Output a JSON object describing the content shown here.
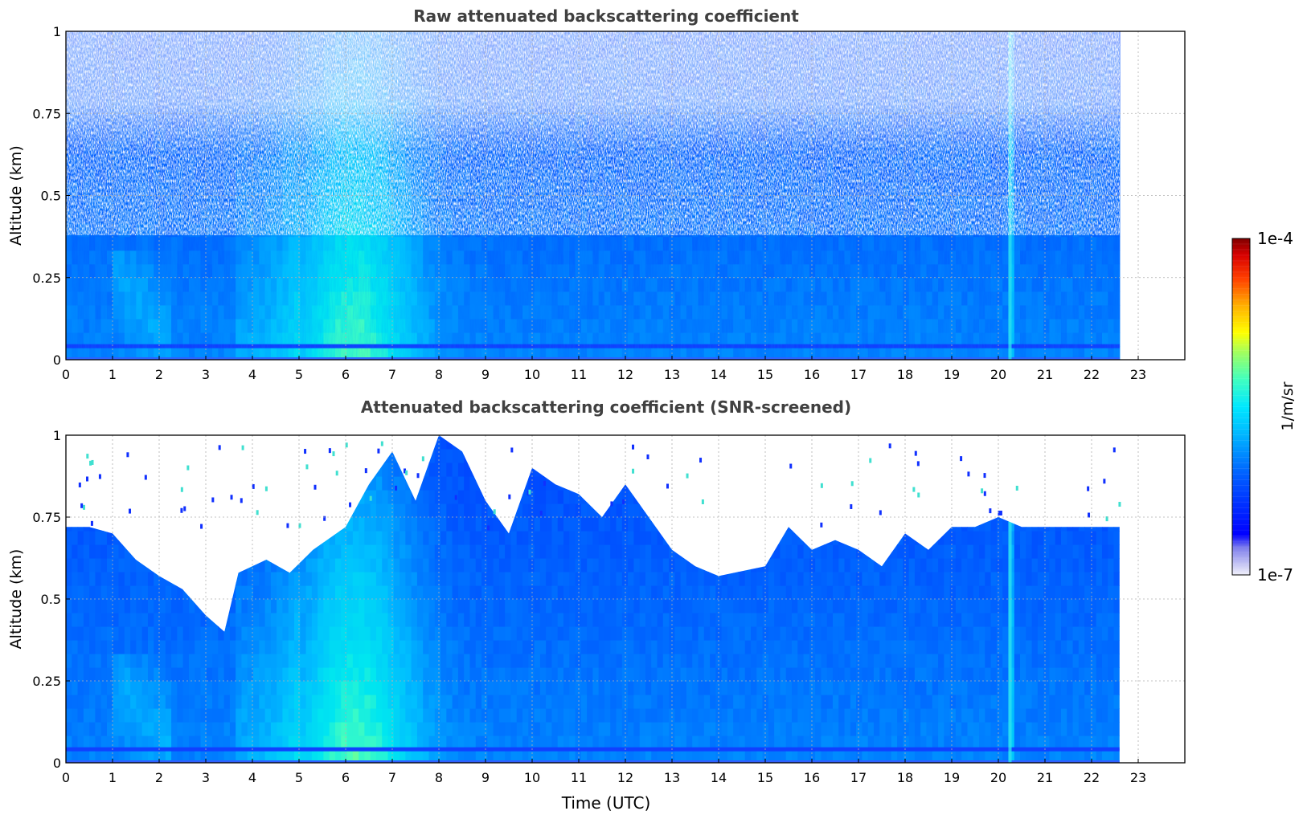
{
  "figure": {
    "xlabel": "Time (UTC)",
    "colorbar": {
      "label": "1/m/sr",
      "max_label": "1e-4",
      "min_label": "1e-7",
      "scale": "log",
      "range": [
        1e-07,
        0.0001
      ],
      "colors": [
        "#e8e8f8",
        "#c0c0f0",
        "#9090e8",
        "#0000ff",
        "#0050ff",
        "#00a0ff",
        "#00e0ff",
        "#40ffc0",
        "#a0ff60",
        "#ffff00",
        "#ffb000",
        "#ff5000",
        "#e00000",
        "#800000"
      ]
    }
  },
  "chart_data": [
    {
      "type": "heatmap",
      "title": "Raw attenuated backscattering coefficient",
      "xlabel": "",
      "ylabel": "Altitude (km)",
      "xlim": [
        0,
        24
      ],
      "ylim": [
        0,
        1
      ],
      "x_ticks": [
        "0",
        "1",
        "2",
        "3",
        "4",
        "5",
        "6",
        "7",
        "8",
        "9",
        "10",
        "11",
        "12",
        "13",
        "14",
        "15",
        "16",
        "17",
        "18",
        "19",
        "20",
        "21",
        "22",
        "23"
      ],
      "y_ticks": [
        "0",
        "0.25",
        "0.5",
        "0.75",
        "1"
      ],
      "grid": true,
      "data_end_time": 22.6,
      "vertical_spike_time": 20.25,
      "horizontal_band_altitude": 0.04,
      "notes_regions": [
        {
          "time": [
            5.0,
            8.0
          ],
          "altitude": [
            0,
            1
          ],
          "level": "high (cyan-green)"
        },
        {
          "time": [
            0,
            22.6
          ],
          "altitude": [
            0.4,
            1
          ],
          "level": "noisy (blue/white)"
        }
      ]
    },
    {
      "type": "heatmap",
      "title": "Attenuated backscattering coefficient (SNR-screened)",
      "xlabel": "Time (UTC)",
      "ylabel": "Altitude (km)",
      "xlim": [
        0,
        24
      ],
      "ylim": [
        0,
        1
      ],
      "x_ticks": [
        "0",
        "1",
        "2",
        "3",
        "4",
        "5",
        "6",
        "7",
        "8",
        "9",
        "10",
        "11",
        "12",
        "13",
        "14",
        "15",
        "16",
        "17",
        "18",
        "19",
        "20",
        "21",
        "22",
        "23"
      ],
      "y_ticks": [
        "0",
        "0.25",
        "0.5",
        "0.75",
        "1"
      ],
      "grid": true,
      "data_end_time": 22.6,
      "vertical_spike_time": 20.25,
      "horizontal_band_altitude": 0.04,
      "screened_top_altitude": [
        [
          0,
          0.72
        ],
        [
          0.5,
          0.72
        ],
        [
          1,
          0.7
        ],
        [
          1.5,
          0.62
        ],
        [
          2,
          0.57
        ],
        [
          2.5,
          0.53
        ],
        [
          3,
          0.45
        ],
        [
          3.4,
          0.4
        ],
        [
          3.7,
          0.58
        ],
        [
          4.3,
          0.62
        ],
        [
          4.8,
          0.58
        ],
        [
          5.3,
          0.65
        ],
        [
          6,
          0.72
        ],
        [
          6.5,
          0.85
        ],
        [
          7,
          0.95
        ],
        [
          7.5,
          0.8
        ],
        [
          8,
          1.0
        ],
        [
          8.5,
          0.95
        ],
        [
          9,
          0.8
        ],
        [
          9.5,
          0.7
        ],
        [
          10,
          0.9
        ],
        [
          10.5,
          0.85
        ],
        [
          11,
          0.82
        ],
        [
          11.5,
          0.75
        ],
        [
          12,
          0.85
        ],
        [
          12.5,
          0.75
        ],
        [
          13,
          0.65
        ],
        [
          13.5,
          0.6
        ],
        [
          14,
          0.57
        ],
        [
          15,
          0.6
        ],
        [
          15.5,
          0.72
        ],
        [
          16,
          0.65
        ],
        [
          16.5,
          0.68
        ],
        [
          17,
          0.65
        ],
        [
          17.5,
          0.6
        ],
        [
          18,
          0.7
        ],
        [
          18.5,
          0.65
        ],
        [
          19,
          0.72
        ],
        [
          19.5,
          0.72
        ],
        [
          20,
          0.75
        ],
        [
          20.5,
          0.72
        ],
        [
          21,
          0.72
        ],
        [
          21.5,
          0.72
        ],
        [
          22,
          0.72
        ],
        [
          22.6,
          0.72
        ]
      ]
    }
  ]
}
